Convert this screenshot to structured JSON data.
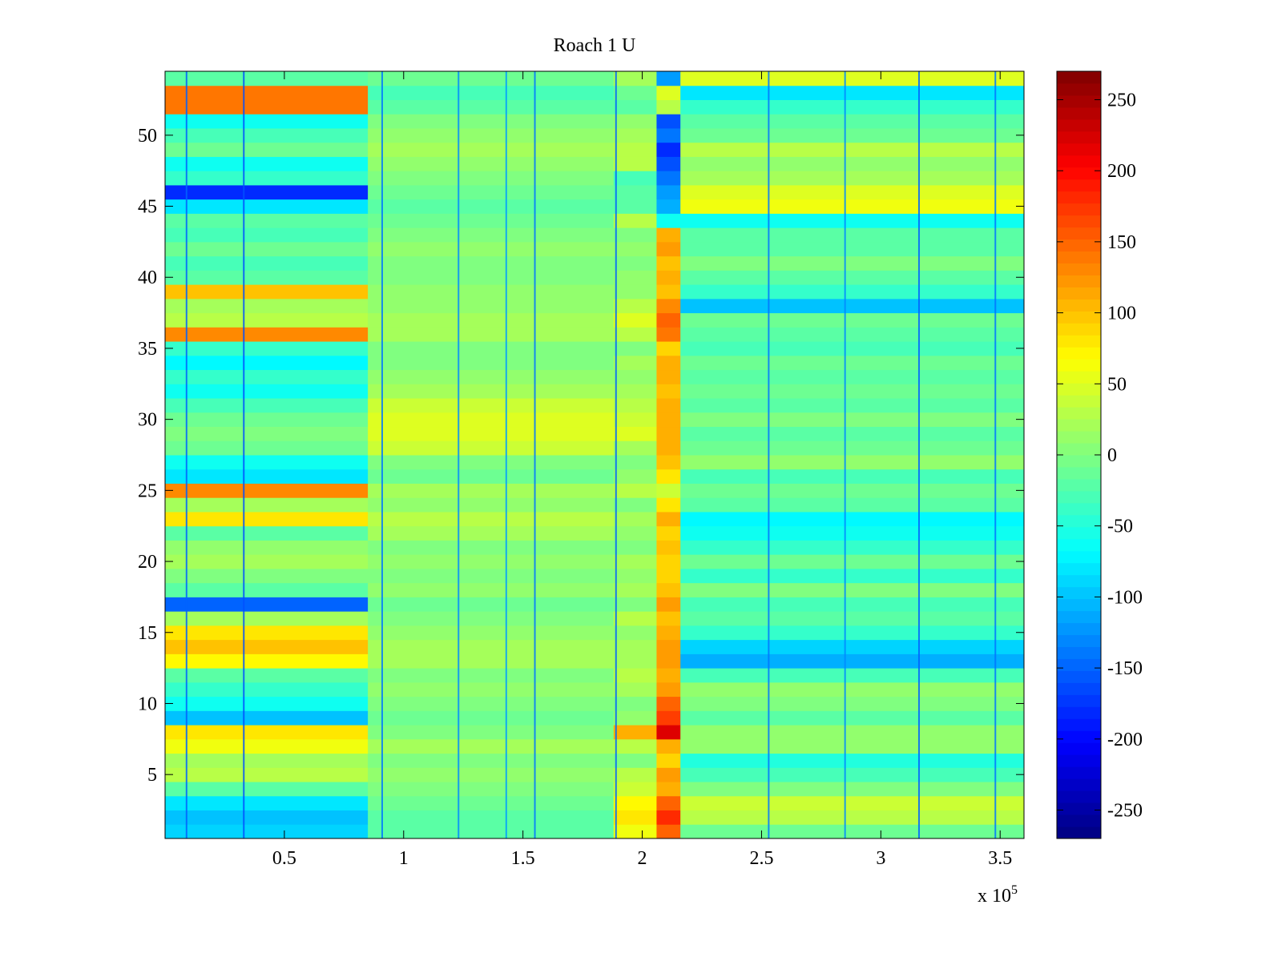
{
  "chart_data": {
    "type": "heatmap",
    "title": "Roach 1 U",
    "xlabel": "",
    "ylabel": "",
    "x_range": [
      0,
      360000
    ],
    "y_range": [
      0.5,
      54.5
    ],
    "rows": 54,
    "x_ticks": [
      {
        "value": 50000,
        "label": "0.5"
      },
      {
        "value": 100000,
        "label": "1"
      },
      {
        "value": 150000,
        "label": "1.5"
      },
      {
        "value": 200000,
        "label": "2"
      },
      {
        "value": 250000,
        "label": "2.5"
      },
      {
        "value": 300000,
        "label": "3"
      },
      {
        "value": 350000,
        "label": "3.5"
      }
    ],
    "x_exponent_label": "x 10",
    "x_exponent_power": "5",
    "y_ticks": [
      {
        "value": 5,
        "label": "5"
      },
      {
        "value": 10,
        "label": "10"
      },
      {
        "value": 15,
        "label": "15"
      },
      {
        "value": 20,
        "label": "20"
      },
      {
        "value": 25,
        "label": "25"
      },
      {
        "value": 30,
        "label": "30"
      },
      {
        "value": 35,
        "label": "35"
      },
      {
        "value": 40,
        "label": "40"
      },
      {
        "value": 45,
        "label": "45"
      },
      {
        "value": 50,
        "label": "50"
      }
    ],
    "colorbar": {
      "colormap": "jet",
      "range": [
        -270,
        270
      ],
      "ticks": [
        {
          "value": 250,
          "label": "250"
        },
        {
          "value": 200,
          "label": "200"
        },
        {
          "value": 150,
          "label": "150"
        },
        {
          "value": 100,
          "label": "100"
        },
        {
          "value": 50,
          "label": "50"
        },
        {
          "value": 0,
          "label": "0"
        },
        {
          "value": -50,
          "label": "-50"
        },
        {
          "value": -100,
          "label": "-100"
        },
        {
          "value": -150,
          "label": "-150"
        },
        {
          "value": -200,
          "label": "-200"
        },
        {
          "value": -250,
          "label": "-250"
        }
      ]
    },
    "segments": [
      {
        "x_start": 0,
        "x_end": 85000
      },
      {
        "x_start": 85000,
        "x_end": 188000
      },
      {
        "x_start": 188000,
        "x_end": 206000
      },
      {
        "x_start": 206000,
        "x_end": 216000
      },
      {
        "x_start": 216000,
        "x_end": 360000
      }
    ],
    "row_values": [
      [
        -90,
        -20,
        60,
        150,
        -10
      ],
      [
        -100,
        -20,
        80,
        180,
        30
      ],
      [
        -80,
        -10,
        70,
        150,
        40
      ],
      [
        -20,
        0,
        40,
        110,
        0
      ],
      [
        30,
        10,
        30,
        120,
        -30
      ],
      [
        20,
        0,
        0,
        90,
        -50
      ],
      [
        60,
        20,
        30,
        110,
        10
      ],
      [
        80,
        0,
        110,
        220,
        10
      ],
      [
        -100,
        -10,
        10,
        170,
        -20
      ],
      [
        -60,
        0,
        0,
        150,
        0
      ],
      [
        -40,
        10,
        20,
        120,
        10
      ],
      [
        -20,
        0,
        30,
        110,
        -30
      ],
      [
        70,
        20,
        20,
        120,
        -110
      ],
      [
        100,
        20,
        20,
        120,
        -90
      ],
      [
        80,
        10,
        10,
        110,
        -40
      ],
      [
        20,
        0,
        30,
        100,
        -20
      ],
      [
        -150,
        -10,
        0,
        120,
        -30
      ],
      [
        -20,
        10,
        20,
        100,
        0
      ],
      [
        0,
        0,
        10,
        90,
        -40
      ],
      [
        20,
        10,
        20,
        90,
        -10
      ],
      [
        10,
        0,
        0,
        100,
        -40
      ],
      [
        -20,
        20,
        10,
        90,
        -60
      ],
      [
        80,
        30,
        20,
        110,
        -70
      ],
      [
        20,
        10,
        0,
        80,
        -20
      ],
      [
        130,
        20,
        30,
        40,
        -10
      ],
      [
        -80,
        -10,
        10,
        80,
        -30
      ],
      [
        -60,
        0,
        0,
        100,
        10
      ],
      [
        -10,
        40,
        20,
        110,
        -10
      ],
      [
        0,
        50,
        50,
        110,
        -20
      ],
      [
        -10,
        50,
        40,
        110,
        0
      ],
      [
        -30,
        40,
        30,
        110,
        -20
      ],
      [
        -60,
        20,
        20,
        100,
        -10
      ],
      [
        -40,
        10,
        10,
        110,
        -20
      ],
      [
        -70,
        0,
        20,
        110,
        -10
      ],
      [
        -40,
        0,
        0,
        90,
        -30
      ],
      [
        130,
        20,
        30,
        140,
        -20
      ],
      [
        30,
        20,
        50,
        150,
        -10
      ],
      [
        20,
        10,
        30,
        130,
        -100
      ],
      [
        100,
        10,
        10,
        100,
        -40
      ],
      [
        -20,
        0,
        10,
        110,
        -20
      ],
      [
        -30,
        0,
        0,
        100,
        0
      ],
      [
        -10,
        10,
        10,
        120,
        -20
      ],
      [
        -30,
        0,
        0,
        110,
        -20
      ],
      [
        -20,
        -10,
        30,
        -60,
        -60
      ],
      [
        -80,
        -20,
        -20,
        -110,
        60
      ],
      [
        -180,
        -10,
        -20,
        -120,
        50
      ],
      [
        -40,
        0,
        -30,
        -140,
        20
      ],
      [
        -60,
        10,
        30,
        -160,
        10
      ],
      [
        -10,
        20,
        30,
        -180,
        30
      ],
      [
        -30,
        10,
        20,
        -140,
        -10
      ],
      [
        -60,
        0,
        10,
        -160,
        -20
      ],
      [
        140,
        -20,
        -20,
        30,
        -40
      ],
      [
        140,
        -30,
        -10,
        50,
        -80
      ],
      [
        -20,
        -10,
        20,
        -120,
        50
      ]
    ],
    "vertical_streaks": [
      {
        "x": 9000,
        "value": -150
      },
      {
        "x": 33000,
        "value": -160
      },
      {
        "x": 91000,
        "value": -140
      },
      {
        "x": 123000,
        "value": -130
      },
      {
        "x": 143000,
        "value": -120
      },
      {
        "x": 155000,
        "value": -140
      },
      {
        "x": 189000,
        "value": -150
      },
      {
        "x": 253000,
        "value": -140
      },
      {
        "x": 285000,
        "value": -130
      },
      {
        "x": 316000,
        "value": -150
      },
      {
        "x": 348000,
        "value": -140
      }
    ]
  }
}
